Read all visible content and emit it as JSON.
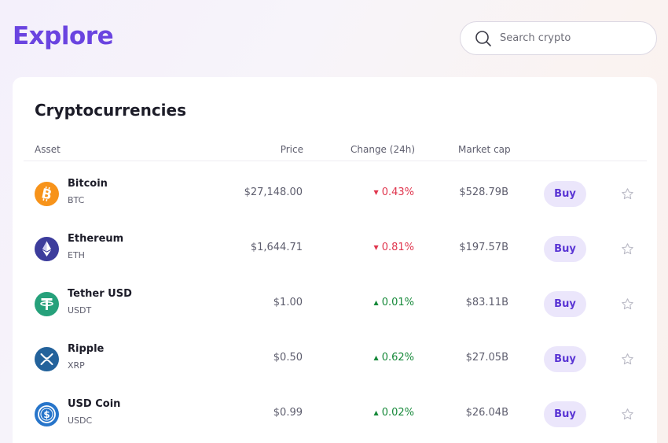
{
  "header": {
    "title": "Explore",
    "search_placeholder": "Search crypto",
    "search_value": ""
  },
  "card": {
    "title": "Cryptocurrencies",
    "columns": {
      "asset": "Asset",
      "price": "Price",
      "change": "Change (24h)",
      "market_cap": "Market cap"
    }
  },
  "rows": [
    {
      "name": "Bitcoin",
      "symbol": "BTC",
      "price": "$27,148.00",
      "change": "0.43%",
      "direction": "down",
      "market_cap": "$528.79B",
      "buy_label": "Buy",
      "icon": "bitcoin-icon",
      "color": "#f7931a"
    },
    {
      "name": "Ethereum",
      "symbol": "ETH",
      "price": "$1,644.71",
      "change": "0.81%",
      "direction": "down",
      "market_cap": "$197.57B",
      "buy_label": "Buy",
      "icon": "ethereum-icon",
      "color": "#3c3c9c"
    },
    {
      "name": "Tether USD",
      "symbol": "USDT",
      "price": "$1.00",
      "change": "0.01%",
      "direction": "up",
      "market_cap": "$83.11B",
      "buy_label": "Buy",
      "icon": "tether-icon",
      "color": "#26a17b"
    },
    {
      "name": "Ripple",
      "symbol": "XRP",
      "price": "$0.50",
      "change": "0.62%",
      "direction": "up",
      "market_cap": "$27.05B",
      "buy_label": "Buy",
      "icon": "ripple-icon",
      "color": "#23629b"
    },
    {
      "name": "USD Coin",
      "symbol": "USDC",
      "price": "$0.99",
      "change": "0.02%",
      "direction": "up",
      "market_cap": "$26.04B",
      "buy_label": "Buy",
      "icon": "usd-coin-icon",
      "color": "#2775ca"
    }
  ],
  "colors": {
    "accent": "#6a44e0",
    "down": "#e0364e",
    "up": "#17893a",
    "buy_bg": "#ebe6fb"
  }
}
